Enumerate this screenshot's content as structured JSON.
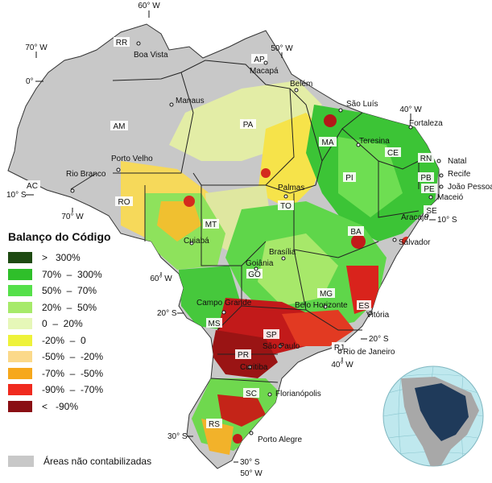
{
  "legend": {
    "title": "Balanço do Código",
    "items": [
      {
        "label": ">   300%",
        "color": "#1e4a12"
      },
      {
        "label": "70%  –  300%",
        "color": "#2fbf2a"
      },
      {
        "label": "50%  –  70%",
        "color": "#55e04a"
      },
      {
        "label": "20%  –  50%",
        "color": "#a6ea6a"
      },
      {
        "label": "0  –  20%",
        "color": "#e6f7b8"
      },
      {
        "label": "-20%  –  0",
        "color": "#eef23a"
      },
      {
        "label": "-50%  –  -20%",
        "color": "#fbd98a"
      },
      {
        "label": "-70%  –  -50%",
        "color": "#f6a81c"
      },
      {
        "label": "-90%  –  -70%",
        "color": "#f02a1e"
      },
      {
        "label": "<   -90%",
        "color": "#8a0f14"
      }
    ],
    "not_accounted": {
      "label": "Áreas não contabilizadas",
      "color": "#c8c8c8"
    }
  },
  "states": [
    "RR",
    "AP",
    "AM",
    "PA",
    "MA",
    "CE",
    "RN",
    "PB",
    "PE",
    "PI",
    "AC",
    "RO",
    "TO",
    "SE",
    "BA",
    "MT",
    "GO",
    "MG",
    "ES",
    "MS",
    "SP",
    "RJ",
    "PR",
    "SC",
    "RS"
  ],
  "cities": [
    "Boa Vista",
    "Macapá",
    "Manaus",
    "Belém",
    "São Luís",
    "Fortaleza",
    "Teresina",
    "Natal",
    "Recife",
    "João Pessoa",
    "Maceió",
    "Aracaju",
    "Salvador",
    "Palmas",
    "Porto Velho",
    "Rio Branco",
    "Cuiabá",
    "Brasília",
    "Goiânia",
    "Campo Grande",
    "Belo Horizonte",
    "Vitória",
    "São Paulo",
    "Rio de Janeiro",
    "Curitiba",
    "Florianópolis",
    "Porto Alegre"
  ],
  "coords": [
    "60° W",
    "50° W",
    "70° W",
    "0°",
    "40° W",
    "10° S",
    "70° W",
    "10° S",
    "60° W",
    "20° S",
    "20° S",
    "40° W",
    "30° S",
    "30° S",
    "50° W"
  ],
  "inset": {
    "name": "globe-inset"
  }
}
